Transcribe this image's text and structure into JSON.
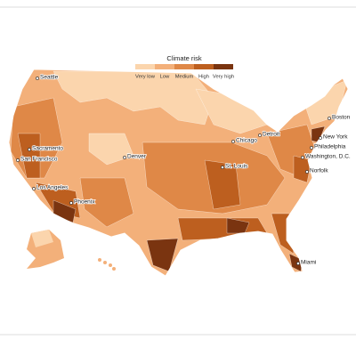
{
  "legend": {
    "title": "Climate risk",
    "levels": [
      {
        "label": "Very low",
        "color": "#fbd5ad"
      },
      {
        "label": "Low",
        "color": "#f3b07a"
      },
      {
        "label": "Medium",
        "color": "#df8847"
      },
      {
        "label": "High",
        "color": "#bd5f1f"
      },
      {
        "label": "Very high",
        "color": "#7a3410"
      }
    ]
  },
  "cities": [
    "Seattle",
    "Sacramento",
    "San Francisco",
    "Los Angeles",
    "Phoenix",
    "Denver",
    "Chicago",
    "Detroit",
    "St. Louis",
    "Boston",
    "New York",
    "Philadelphia",
    "Washington, D.C.",
    "Norfolk",
    "Miami"
  ]
}
